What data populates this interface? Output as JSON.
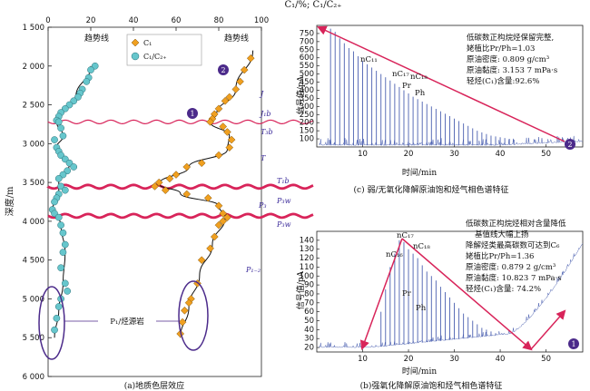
{
  "colors": {
    "diamond": "#f0a020",
    "circle": "#66c6cc",
    "wavy_line": "#d8245a",
    "ellipse": "#4b2a8a",
    "spectrum": "#4a5fb0",
    "arrow": "#d8245a",
    "strat_text": "#3b2a9a"
  },
  "panel_a": {
    "top_axis_label": "C₁/%; C₁/C₂₊",
    "x_ticks": [
      "0",
      "20",
      "40",
      "60",
      "80",
      "100"
    ],
    "y_label": "深度/m",
    "y_ticks": [
      "1 500",
      "2 000",
      "2 500",
      "3 000",
      "3 500",
      "4 000",
      "4 500",
      "5 000",
      "5 500",
      "6 000"
    ],
    "legend": [
      {
        "marker": "diamond",
        "label": "C₁"
      },
      {
        "marker": "circle",
        "label": "C₁/C₂₊"
      }
    ],
    "trend_label_left": "趋势线",
    "trend_label_right": "趋势线",
    "marker_1": "1",
    "marker_2": "2",
    "strata": [
      "J",
      "J₁b",
      "T₃b",
      "T",
      "T₁b",
      "P₃w",
      "P₃",
      "P₃w",
      "P₁₋₂"
    ],
    "source_rock_label": "P₁/烃源岩",
    "caption": "(a)地质色层效应"
  },
  "panel_c": {
    "y_label": "信号值/pA",
    "y_ticks": [
      "100",
      "150",
      "200",
      "250",
      "300",
      "350",
      "400",
      "450",
      "500",
      "550",
      "600",
      "650",
      "700",
      "750"
    ],
    "x_ticks": [
      "10",
      "20",
      "30",
      "40",
      "50"
    ],
    "x_label": "时间/min",
    "peak_labels": [
      "nC₁₁",
      "nC₁₇",
      "nC₁₈",
      "Pr",
      "Ph"
    ],
    "annotation": [
      "低碳数正构烷烃保留完整,",
      "姥植比Pr/Ph=1.03",
      "原油密度: 0.809 g/cm³",
      "原油黏度: 3.153 7 mPa·s",
      "轻烃(C₁)含量:92.6%"
    ],
    "marker": "2",
    "caption": "(c) 弱/无氧化降解原油饱和烃气相色谱特征"
  },
  "panel_b": {
    "y_label": "信号值/pA",
    "y_ticks": [
      "20",
      "30",
      "40",
      "50",
      "60",
      "70",
      "80",
      "90",
      "100",
      "110",
      "120",
      "130",
      "140"
    ],
    "x_ticks": [
      "10",
      "20",
      "30",
      "40",
      "50"
    ],
    "x_label": "时间/min",
    "peak_labels": [
      "nC₁₇",
      "nC₁₈",
      "nC₁₆",
      "Pr",
      "Ph"
    ],
    "annotation": [
      "低碳数正构烷烃相对含量降低",
      "基值线大幅上扬",
      "降解烃类最高碳数可达到C₆",
      "姥植比Pr/Ph=1.36",
      "原油密度: 0.879 2 g/cm³",
      "原油黏度: 10.823 7 mPa·s",
      "轻烃(C₁)含量: 74.2%"
    ],
    "marker": "1",
    "caption": "(b)强氧化降解原油饱和烃气相色谱特征"
  },
  "chart_data": [
    {
      "type": "scatter",
      "panel": "a",
      "x_axis": "C₁/%; C₁/C₂₊",
      "y_axis": "深度/m",
      "xlim": [
        0,
        100
      ],
      "ylim": [
        6000,
        1500
      ],
      "series": [
        {
          "name": "C₁",
          "marker": "diamond",
          "points": [
            [
              95,
              1900
            ],
            [
              92,
              2050
            ],
            [
              90,
              2200
            ],
            [
              88,
              2300
            ],
            [
              85,
              2400
            ],
            [
              83,
              2450
            ],
            [
              80,
              2550
            ],
            [
              78,
              2620
            ],
            [
              77,
              2680
            ],
            [
              76,
              2720
            ],
            [
              82,
              2780
            ],
            [
              84,
              2850
            ],
            [
              86,
              2950
            ],
            [
              85,
              3050
            ],
            [
              80,
              3150
            ],
            [
              72,
              3250
            ],
            [
              65,
              3300
            ],
            [
              60,
              3400
            ],
            [
              57,
              3450
            ],
            [
              52,
              3500
            ],
            [
              50,
              3550
            ],
            [
              55,
              3600
            ],
            [
              65,
              3650
            ],
            [
              75,
              3700
            ],
            [
              80,
              3800
            ],
            [
              82,
              3900
            ],
            [
              84,
              3950
            ],
            [
              82,
              4000
            ],
            [
              80,
              4050
            ],
            [
              78,
              4200
            ],
            [
              76,
              4350
            ],
            [
              72,
              4500
            ],
            [
              70,
              4800
            ],
            [
              67,
              5000
            ],
            [
              66,
              5050
            ],
            [
              64,
              5150
            ],
            [
              63,
              5300
            ],
            [
              62,
              5450
            ]
          ]
        },
        {
          "name": "C₁/C₂₊",
          "marker": "circle",
          "points": [
            [
              22,
              2000
            ],
            [
              20,
              2050
            ],
            [
              19,
              2150
            ],
            [
              18,
              2200
            ],
            [
              16,
              2300
            ],
            [
              15,
              2350
            ],
            [
              14,
              2400
            ],
            [
              12,
              2450
            ],
            [
              10,
              2500
            ],
            [
              8,
              2550
            ],
            [
              6,
              2600
            ],
            [
              5,
              2650
            ],
            [
              4,
              2700
            ],
            [
              5,
              2720
            ],
            [
              6,
              2800
            ],
            [
              7,
              2900
            ],
            [
              3,
              2950
            ],
            [
              4,
              3050
            ],
            [
              5,
              3100
            ],
            [
              6,
              3150
            ],
            [
              8,
              3200
            ],
            [
              10,
              3250
            ],
            [
              12,
              3300
            ],
            [
              9,
              3350
            ],
            [
              7,
              3400
            ],
            [
              5,
              3450
            ],
            [
              6,
              3550
            ],
            [
              8,
              3600
            ],
            [
              5,
              3650
            ],
            [
              4,
              3700
            ],
            [
              3,
              3750
            ],
            [
              2,
              3850
            ],
            [
              3,
              3900
            ],
            [
              5,
              3950
            ],
            [
              6,
              4050
            ],
            [
              7,
              4150
            ],
            [
              8,
              4300
            ],
            [
              7,
              4400
            ],
            [
              6,
              4600
            ],
            [
              8,
              4800
            ],
            [
              9,
              4900
            ],
            [
              6,
              5000
            ],
            [
              5,
              5100
            ],
            [
              4,
              5250
            ],
            [
              3,
              5400
            ]
          ]
        }
      ]
    },
    {
      "type": "line",
      "panel": "c",
      "x_label": "时间/min",
      "y_label": "信号值/pA",
      "xlim": [
        0,
        58
      ],
      "ylim": [
        50,
        800
      ],
      "peaks_x": [
        3,
        4,
        5,
        6,
        7,
        8,
        9,
        10,
        11,
        12,
        13,
        14,
        15,
        16,
        17,
        18,
        19,
        20,
        21,
        22,
        23,
        24,
        25,
        26,
        27,
        28,
        29,
        30,
        31,
        32,
        33,
        34,
        35,
        36,
        37,
        38,
        39,
        40,
        41,
        42,
        43
      ],
      "peaks_y": [
        780,
        760,
        720,
        690,
        660,
        640,
        610,
        580,
        560,
        540,
        520,
        500,
        480,
        460,
        440,
        420,
        400,
        380,
        360,
        345,
        330,
        315,
        300,
        285,
        270,
        255,
        240,
        225,
        210,
        195,
        180,
        165,
        150,
        140,
        130,
        120,
        115,
        110,
        105,
        100,
        95
      ]
    },
    {
      "type": "line",
      "panel": "b",
      "x_label": "时间/min",
      "y_label": "信号值/pA",
      "xlim": [
        0,
        58
      ],
      "ylim": [
        15,
        150
      ],
      "peaks_x": [
        14,
        15,
        16,
        17,
        18,
        19,
        20,
        21,
        22,
        23,
        24,
        25,
        26,
        27,
        28,
        29,
        30,
        31,
        32,
        33,
        34,
        35,
        36,
        37,
        38,
        39,
        40
      ],
      "peaks_y": [
        60,
        85,
        110,
        125,
        140,
        138,
        130,
        125,
        120,
        112,
        105,
        100,
        95,
        88,
        82,
        76,
        70,
        64,
        58,
        54,
        50,
        46,
        42,
        40,
        38,
        36,
        34
      ]
    }
  ]
}
